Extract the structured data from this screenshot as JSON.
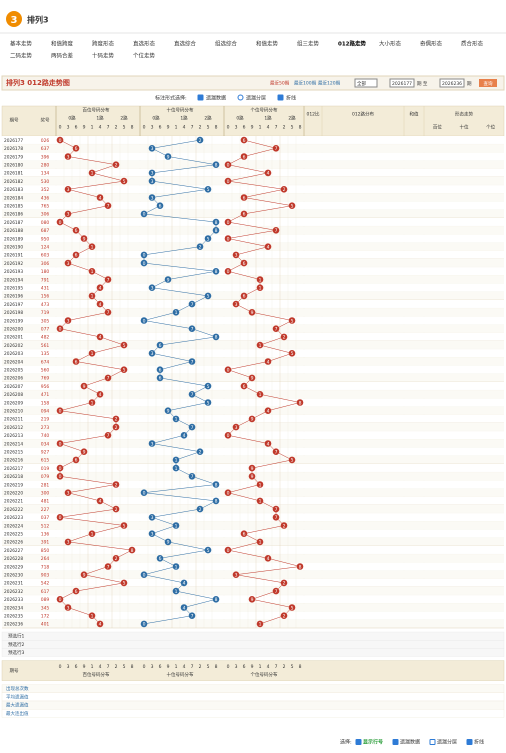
{
  "header": {
    "logo": "3",
    "title": "排列3"
  },
  "nav": [
    [
      "基本走势",
      "和值跨度",
      "跨度形态",
      "直选形态",
      "直选综合",
      "组选综合",
      "和值走势",
      "组三走势",
      "012路走势",
      "大小形态",
      "奇偶形态",
      "质合形态"
    ],
    [
      "二码走势",
      "两码合差",
      "十码走势",
      "个位走势"
    ]
  ],
  "page_title": "排列3 012路走势图",
  "filters": [
    "最近50期",
    "最近100期",
    "最近120期"
  ],
  "range": {
    "select": "全部",
    "from": "2026177",
    "mid": "期 至",
    "to": "2026236",
    "end": "期",
    "button": "查询"
  },
  "controls": {
    "label": "标注形式选择:",
    "options": [
      "遗漏数据",
      "遗漏分层",
      "折线"
    ]
  },
  "table": {
    "head": [
      "期号",
      "奖号"
    ],
    "sections": [
      "百位号码分布",
      "十位号码分布",
      "个位号码分布"
    ],
    "routes": [
      "0路",
      "1路",
      "2路"
    ],
    "digits": [
      "0",
      "3",
      "6",
      "9",
      "1",
      "4",
      "7",
      "2",
      "5",
      "8"
    ],
    "right": [
      "012比",
      "012路分布",
      "和值",
      "形态走势"
    ],
    "right_sub": [
      "百位",
      "十位",
      "个位"
    ],
    "rows": [
      [
        "2026177",
        "026"
      ],
      [
        "2026178",
        "637"
      ],
      [
        "2026179",
        "396"
      ],
      [
        "2026180",
        "280"
      ],
      [
        "2026181",
        "134"
      ],
      [
        "2026182",
        "530"
      ],
      [
        "2026183",
        "352"
      ],
      [
        "2026184",
        "436"
      ],
      [
        "2026185",
        "765"
      ],
      [
        "2026186",
        "306"
      ],
      [
        "2026187",
        "080"
      ],
      [
        "2026188",
        "687"
      ],
      [
        "2026189",
        "950"
      ],
      [
        "2026190",
        "124"
      ],
      [
        "2026191",
        "603"
      ],
      [
        "2026192",
        "306"
      ],
      [
        "2026193",
        "180"
      ],
      [
        "2026194",
        "791"
      ],
      [
        "2026195",
        "431"
      ],
      [
        "2026196",
        "156"
      ],
      [
        "2026197",
        "473"
      ],
      [
        "2026198",
        "719"
      ],
      [
        "2026199",
        "305"
      ],
      [
        "2026200",
        "077"
      ],
      [
        "2026201",
        "482"
      ],
      [
        "2026202",
        "561"
      ],
      [
        "2026203",
        "135"
      ],
      [
        "2026204",
        "674"
      ],
      [
        "2026205",
        "560"
      ],
      [
        "2026206",
        "769"
      ],
      [
        "2026207",
        "956"
      ],
      [
        "2026208",
        "471"
      ],
      [
        "2026209",
        "158"
      ],
      [
        "2026210",
        "094"
      ],
      [
        "2026211",
        "219"
      ],
      [
        "2026212",
        "273"
      ],
      [
        "2026213",
        "740"
      ],
      [
        "2026214",
        "034"
      ],
      [
        "2026215",
        "927"
      ],
      [
        "2026216",
        "615"
      ],
      [
        "2026217",
        "019"
      ],
      [
        "2026218",
        "079"
      ],
      [
        "2026219",
        "281"
      ],
      [
        "2026220",
        "300"
      ],
      [
        "2026221",
        "481"
      ],
      [
        "2026222",
        "227"
      ],
      [
        "2026223",
        "037"
      ],
      [
        "2026224",
        "512"
      ],
      [
        "2026225",
        "136"
      ],
      [
        "2026226",
        "391"
      ],
      [
        "2026227",
        "850"
      ],
      [
        "2026228",
        "264"
      ],
      [
        "2026229",
        "718"
      ],
      [
        "2026230",
        "903"
      ],
      [
        "2026231",
        "542"
      ],
      [
        "2026232",
        "617"
      ],
      [
        "2026233",
        "089"
      ],
      [
        "2026234",
        "345"
      ],
      [
        "2026235",
        "172"
      ],
      [
        "2026236",
        "401"
      ]
    ],
    "preselect": [
      "预选行1",
      "预选行2",
      "预选行3"
    ],
    "stats": [
      "出现总次数",
      "平均遗漏值",
      "最大遗漏值",
      "最大连出值"
    ]
  },
  "footer": {
    "label": "选择:",
    "options": [
      "显示行号",
      "遗漏数据",
      "遗漏分层",
      "折线"
    ]
  }
}
